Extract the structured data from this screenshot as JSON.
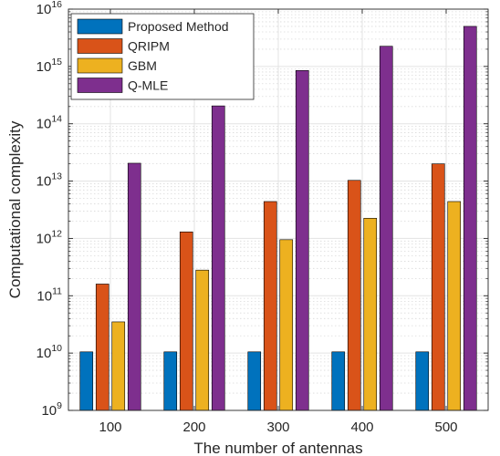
{
  "chart_data": {
    "type": "bar",
    "yscale": "log",
    "ylim": [
      1000000000.0,
      1e+16
    ],
    "xlabel": "The number of antennas",
    "ylabel": "Computational complexity",
    "categories": [
      "100",
      "200",
      "300",
      "400",
      "500"
    ],
    "yticks": [
      {
        "base": "10",
        "exp": "9",
        "value": 1000000000.0
      },
      {
        "base": "10",
        "exp": "10",
        "value": 10000000000.0
      },
      {
        "base": "10",
        "exp": "11",
        "value": 100000000000.0
      },
      {
        "base": "10",
        "exp": "12",
        "value": 1000000000000.0
      },
      {
        "base": "10",
        "exp": "13",
        "value": 10000000000000.0
      },
      {
        "base": "10",
        "exp": "14",
        "value": 100000000000000.0
      },
      {
        "base": "10",
        "exp": "15",
        "value": 1000000000000000.0
      },
      {
        "base": "10",
        "exp": "16",
        "value": 1e+16
      }
    ],
    "grid": true,
    "minor_grid": true,
    "legend_position": "top-left",
    "series": [
      {
        "name": "Proposed Method",
        "color": "#0072BD",
        "values": [
          10500000000.0,
          10500000000.0,
          10500000000.0,
          10500000000.0,
          10500000000.0
        ]
      },
      {
        "name": "QRIPM",
        "color": "#D95319",
        "values": [
          160000000000.0,
          1300000000000.0,
          4400000000000.0,
          10300000000000.0,
          20000000000000.0
        ]
      },
      {
        "name": "GBM",
        "color": "#EDB120",
        "values": [
          35000000000.0,
          280000000000.0,
          950000000000.0,
          2250000000000.0,
          4400000000000.0
        ]
      },
      {
        "name": "Q-MLE",
        "color": "#7E2F8E",
        "values": [
          20500000000000.0,
          205000000000000.0,
          850000000000000.0,
          2250000000000000.0,
          5000000000000000.0
        ]
      }
    ]
  }
}
